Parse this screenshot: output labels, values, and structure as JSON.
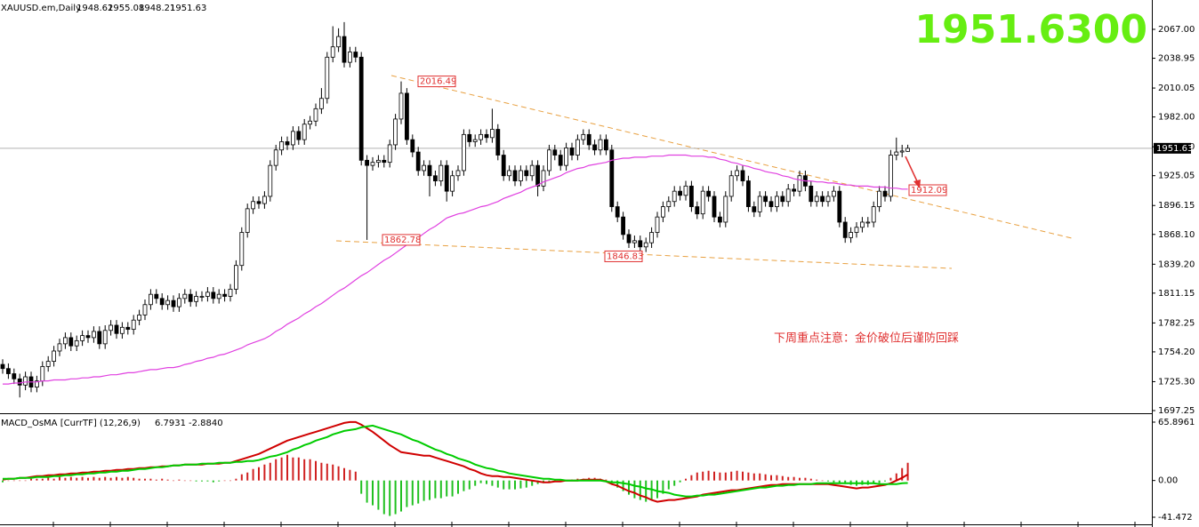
{
  "header": {
    "symbol": "XAUUSD.em,Daily"
  },
  "price_display": "1951.6300",
  "annotations": [
    "2016.49",
    "1862.78",
    "1846.83",
    "1912.09"
  ],
  "note": "下周重点注意：金价破位后谨防回踩",
  "chart_data": [
    {
      "type": "candlestick",
      "up_color": "#ffffff",
      "down_color": "#000000",
      "ma_color": "#e040e0",
      "ylim": [
        1694.66,
        2095.44
      ],
      "yticks": [
        {
          "value": 2067,
          "label": "2067.00"
        },
        {
          "value": 2038.95,
          "label": "2038.95"
        },
        {
          "value": 2010.05,
          "label": "2010.05"
        },
        {
          "value": 1982,
          "label": "1982.00"
        },
        {
          "value": 1953.1,
          "label": "1953.10"
        },
        {
          "value": 1925.05,
          "label": "1925.05"
        },
        {
          "value": 1896.15,
          "label": "1896.15"
        },
        {
          "value": 1868.1,
          "label": "1868.10"
        },
        {
          "value": 1839.2,
          "label": "1839.20"
        },
        {
          "value": 1811.15,
          "label": "1811.15"
        },
        {
          "value": 1782.25,
          "label": "1782.25"
        },
        {
          "value": 1754.2,
          "label": "1754.20"
        },
        {
          "value": 1725.3,
          "label": "1725.30"
        },
        {
          "value": 1697.25,
          "label": "1697.25"
        }
      ],
      "open": [
        1742,
        1738,
        1733,
        1728,
        1722,
        1730,
        1720,
        1726,
        1740,
        1745,
        1755,
        1762,
        1768,
        1760,
        1765,
        1770,
        1768,
        1774,
        1762,
        1775,
        1780,
        1772,
        1778,
        1776,
        1785,
        1790,
        1800,
        1810,
        1806,
        1800,
        1804,
        1798,
        1806,
        1810,
        1803,
        1808,
        1808,
        1812,
        1806,
        1810,
        1808,
        1815,
        1838,
        1870,
        1893,
        1900,
        1898,
        1905,
        1935,
        1950,
        1958,
        1955,
        1968,
        1960,
        1975,
        1978,
        1990,
        2000,
        2040,
        2050,
        2060,
        2035,
        2045,
        2040,
        1940,
        1935,
        1938,
        1940,
        1938,
        1955,
        1980,
        2005,
        1960,
        1948,
        1930,
        1935,
        1925,
        1920,
        1935,
        1910,
        1925,
        1930,
        1965,
        1958,
        1960,
        1965,
        1962,
        1970,
        1945,
        1925,
        1930,
        1920,
        1930,
        1925,
        1935,
        1915,
        1930,
        1950,
        1945,
        1935,
        1952,
        1945,
        1960,
        1965,
        1955,
        1950,
        1960,
        1950,
        1895,
        1885,
        1868,
        1860,
        1862,
        1856,
        1860,
        1870,
        1885,
        1895,
        1900,
        1910,
        1906,
        1915,
        1895,
        1888,
        1910,
        1905,
        1885,
        1880,
        1905,
        1925,
        1930,
        1920,
        1895,
        1890,
        1905,
        1900,
        1895,
        1905,
        1900,
        1912,
        1910,
        1925,
        1915,
        1900,
        1905,
        1900,
        1905,
        1910,
        1880,
        1865,
        1870,
        1875,
        1880,
        1880,
        1895,
        1910,
        1905,
        1945,
        1948,
        1948.62
      ],
      "high": [
        1747,
        1743,
        1738,
        1733,
        1735,
        1735,
        1731,
        1745,
        1750,
        1760,
        1767,
        1773,
        1773,
        1770,
        1775,
        1775,
        1779,
        1779,
        1780,
        1785,
        1785,
        1783,
        1783,
        1790,
        1795,
        1805,
        1815,
        1815,
        1811,
        1809,
        1809,
        1811,
        1815,
        1815,
        1813,
        1813,
        1817,
        1817,
        1815,
        1815,
        1820,
        1843,
        1875,
        1898,
        1905,
        1905,
        1910,
        1940,
        1955,
        1963,
        1963,
        1973,
        1973,
        1980,
        1983,
        1995,
        2010,
        2045,
        2070,
        2068,
        2074,
        2050,
        2050,
        2045,
        1945,
        1943,
        1945,
        1945,
        1960,
        1985,
        2016.49,
        2010,
        1965,
        1953,
        1940,
        1940,
        1930,
        1940,
        1940,
        1930,
        1935,
        1970,
        1970,
        1965,
        1970,
        1970,
        1990,
        1975,
        1950,
        1935,
        1935,
        1935,
        1935,
        1940,
        1940,
        1935,
        1955,
        1955,
        1950,
        1957,
        1957,
        1965,
        1970,
        1970,
        1960,
        1965,
        1965,
        1955,
        1900,
        1890,
        1873,
        1867,
        1867,
        1865,
        1875,
        1890,
        1900,
        1905,
        1915,
        1915,
        1920,
        1920,
        1900,
        1915,
        1915,
        1910,
        1890,
        1910,
        1930,
        1935,
        1935,
        1925,
        1900,
        1910,
        1910,
        1905,
        1910,
        1910,
        1917,
        1917,
        1930,
        1930,
        1920,
        1910,
        1910,
        1910,
        1915,
        1915,
        1885,
        1875,
        1880,
        1885,
        1885,
        1900,
        1915,
        1915,
        1950,
        1962,
        1955,
        1955.08
      ],
      "low": [
        1733,
        1728,
        1723,
        1710,
        1717,
        1715,
        1715,
        1721,
        1735,
        1740,
        1750,
        1757,
        1755,
        1755,
        1760,
        1763,
        1763,
        1757,
        1757,
        1770,
        1767,
        1767,
        1771,
        1771,
        1780,
        1785,
        1795,
        1801,
        1795,
        1795,
        1793,
        1793,
        1801,
        1798,
        1798,
        1803,
        1803,
        1801,
        1801,
        1803,
        1803,
        1810,
        1833,
        1865,
        1888,
        1893,
        1893,
        1900,
        1930,
        1945,
        1950,
        1950,
        1955,
        1955,
        1970,
        1973,
        1985,
        1995,
        2035,
        2045,
        2030,
        2030,
        2035,
        1935,
        1862.78,
        1930,
        1933,
        1933,
        1933,
        1950,
        1975,
        1955,
        1943,
        1925,
        1925,
        1905,
        1915,
        1915,
        1900,
        1905,
        1920,
        1925,
        1953,
        1953,
        1955,
        1957,
        1957,
        1940,
        1920,
        1920,
        1915,
        1915,
        1920,
        1920,
        1905,
        1910,
        1925,
        1940,
        1930,
        1930,
        1940,
        1940,
        1955,
        1950,
        1945,
        1945,
        1945,
        1890,
        1880,
        1863,
        1855,
        1855,
        1846.83,
        1851,
        1855,
        1865,
        1880,
        1890,
        1895,
        1901,
        1901,
        1890,
        1883,
        1883,
        1900,
        1880,
        1875,
        1875,
        1900,
        1920,
        1915,
        1890,
        1885,
        1885,
        1895,
        1890,
        1890,
        1895,
        1895,
        1905,
        1905,
        1910,
        1895,
        1895,
        1895,
        1895,
        1900,
        1875,
        1860,
        1860,
        1865,
        1870,
        1875,
        1875,
        1890,
        1900,
        1900,
        1940,
        1943,
        1948.21
      ],
      "close": [
        1738,
        1733,
        1728,
        1722,
        1730,
        1720,
        1726,
        1740,
        1745,
        1755,
        1762,
        1768,
        1760,
        1765,
        1770,
        1768,
        1774,
        1762,
        1775,
        1780,
        1772,
        1778,
        1776,
        1785,
        1790,
        1800,
        1810,
        1806,
        1800,
        1804,
        1798,
        1806,
        1810,
        1803,
        1808,
        1808,
        1812,
        1806,
        1810,
        1808,
        1815,
        1838,
        1870,
        1893,
        1900,
        1898,
        1905,
        1935,
        1950,
        1958,
        1955,
        1968,
        1960,
        1975,
        1978,
        1990,
        2000,
        2040,
        2050,
        2060,
        2035,
        2045,
        2040,
        1940,
        1935,
        1938,
        1940,
        1938,
        1955,
        1980,
        2005,
        1960,
        1948,
        1930,
        1935,
        1925,
        1920,
        1935,
        1910,
        1925,
        1930,
        1965,
        1958,
        1960,
        1965,
        1962,
        1970,
        1945,
        1925,
        1930,
        1920,
        1930,
        1925,
        1935,
        1915,
        1930,
        1950,
        1945,
        1935,
        1952,
        1945,
        1960,
        1965,
        1955,
        1950,
        1960,
        1950,
        1895,
        1885,
        1868,
        1860,
        1862,
        1856,
        1860,
        1870,
        1885,
        1895,
        1900,
        1910,
        1906,
        1915,
        1895,
        1888,
        1910,
        1905,
        1885,
        1880,
        1905,
        1925,
        1930,
        1920,
        1895,
        1890,
        1905,
        1900,
        1895,
        1905,
        1900,
        1912,
        1910,
        1925,
        1915,
        1900,
        1905,
        1900,
        1905,
        1910,
        1880,
        1865,
        1870,
        1875,
        1880,
        1880,
        1895,
        1910,
        1905,
        1945,
        1948,
        1949,
        1951.63
      ],
      "ma": [
        1723,
        1723,
        1724,
        1724,
        1725,
        1725,
        1725,
        1726,
        1726,
        1727,
        1727,
        1727,
        1728,
        1728,
        1729,
        1729,
        1730,
        1730,
        1731,
        1732,
        1732,
        1733,
        1734,
        1734,
        1735,
        1736,
        1737,
        1737,
        1738,
        1739,
        1739,
        1740,
        1742,
        1743,
        1745,
        1746,
        1748,
        1749,
        1751,
        1752,
        1754,
        1756,
        1758,
        1761,
        1763,
        1765,
        1767,
        1770,
        1774,
        1777,
        1781,
        1784,
        1787,
        1791,
        1794,
        1798,
        1801,
        1805,
        1809,
        1813,
        1816,
        1820,
        1824,
        1828,
        1831,
        1835,
        1839,
        1843,
        1846,
        1850,
        1854,
        1858,
        1861,
        1865,
        1869,
        1873,
        1876,
        1880,
        1884,
        1886,
        1888,
        1889,
        1891,
        1893,
        1895,
        1896,
        1898,
        1900,
        1903,
        1905,
        1907,
        1909,
        1912,
        1914,
        1916,
        1919,
        1921,
        1923,
        1925,
        1928,
        1930,
        1932,
        1933,
        1935,
        1936,
        1937,
        1938,
        1940,
        1941,
        1942,
        1942,
        1943,
        1943,
        1943,
        1944,
        1944,
        1944,
        1945,
        1945,
        1945,
        1945,
        1944,
        1944,
        1944,
        1943,
        1943,
        1941,
        1940,
        1938,
        1937,
        1935,
        1934,
        1932,
        1931,
        1929,
        1928,
        1927,
        1925,
        1924,
        1922,
        1921,
        1920,
        1920,
        1919,
        1919,
        1918,
        1918,
        1917,
        1916,
        1916,
        1915,
        1915,
        1915,
        1914,
        1914,
        1914,
        1913,
        1913,
        1912,
        1912
      ]
    },
    {
      "type": "macd",
      "title": "MACD_OsMA [CurrTF] (12,26,9)",
      "readout": [
        "6.7931",
        "-2.8840"
      ],
      "macd_color": "#d00000",
      "signal_color": "#00cc00",
      "up_color": "#d02020",
      "down_color": "#20c020",
      "ylim": [
        -49.5,
        73.92
      ],
      "yticks": [
        65.8961,
        {
          "value": 0,
          "label": "0.00"
        },
        -41.472
      ],
      "osma": [
        -2,
        0,
        0,
        0,
        0,
        2,
        2,
        2,
        4,
        2,
        4,
        3,
        4,
        3,
        4,
        3,
        4,
        3,
        4,
        3,
        4,
        3,
        4,
        3,
        2,
        2,
        2,
        1,
        2,
        1,
        0,
        1,
        0,
        0,
        -1,
        -1,
        -1,
        -2,
        -1,
        0,
        0,
        2,
        7,
        9,
        13,
        15,
        18,
        20,
        24,
        26,
        29,
        26,
        26,
        24,
        24,
        22,
        20,
        19,
        18,
        16,
        14,
        12,
        10,
        -15,
        -25,
        -28,
        -33,
        -38,
        -40,
        -38,
        -35,
        -30,
        -28,
        -26,
        -23,
        -22,
        -20,
        -20,
        -18,
        -18,
        -15,
        -12,
        -10,
        -6,
        -3,
        -4,
        -6,
        -8,
        -10,
        -10,
        -10,
        -9,
        -8,
        -6,
        -4,
        -3,
        -2,
        -1,
        0,
        0,
        1,
        2,
        2,
        3,
        3,
        2,
        1,
        -3,
        -8,
        -12,
        -16,
        -20,
        -22,
        -24,
        -22,
        -20,
        -15,
        -10,
        -6,
        -2,
        2,
        6,
        9,
        10,
        11,
        10,
        9,
        9,
        10,
        11,
        10,
        9,
        8,
        8,
        7,
        6,
        6,
        5,
        4,
        4,
        3,
        3,
        2,
        1,
        0,
        -1,
        -2,
        -3,
        -4,
        -5,
        -6,
        -5,
        -5,
        -4,
        -3,
        -1,
        3,
        8,
        14,
        20
      ],
      "macd": [
        1,
        2,
        2,
        3,
        3,
        4,
        5,
        5,
        6,
        6,
        7,
        7,
        8,
        8,
        9,
        9,
        10,
        10,
        11,
        11,
        12,
        12,
        13,
        13,
        14,
        14,
        15,
        15,
        16,
        16,
        17,
        17,
        18,
        18,
        18,
        18,
        19,
        19,
        19,
        20,
        20,
        22,
        24,
        26,
        28,
        30,
        33,
        36,
        39,
        42,
        45,
        47,
        49,
        51,
        53,
        55,
        57,
        59,
        61,
        63,
        65,
        66,
        66,
        63,
        59,
        55,
        50,
        45,
        40,
        36,
        32,
        31,
        30,
        29,
        28,
        28,
        26,
        24,
        22,
        20,
        18,
        16,
        13,
        11,
        8,
        6,
        5,
        5,
        4,
        4,
        3,
        2,
        1,
        0,
        -1,
        -2,
        -2,
        -1,
        -1,
        0,
        0,
        0,
        1,
        1,
        1,
        1,
        -1,
        -4,
        -6,
        -9,
        -12,
        -14,
        -17,
        -19,
        -22,
        -24,
        -23,
        -22,
        -22,
        -21,
        -20,
        -19,
        -18,
        -16,
        -15,
        -14,
        -13,
        -12,
        -11,
        -11,
        -10,
        -9,
        -8,
        -7,
        -6,
        -5,
        -5,
        -4,
        -4,
        -4,
        -4,
        -4,
        -4,
        -4,
        -4,
        -4,
        -5,
        -6,
        -7,
        -8,
        -9,
        -8,
        -8,
        -7,
        -6,
        -5,
        -3,
        0,
        3,
        6.7931
      ],
      "signal": [
        2,
        2,
        2,
        3,
        3,
        3,
        4,
        4,
        4,
        5,
        5,
        6,
        6,
        7,
        7,
        8,
        8,
        9,
        9,
        10,
        10,
        11,
        11,
        12,
        13,
        13,
        14,
        15,
        15,
        16,
        17,
        17,
        18,
        18,
        18,
        19,
        19,
        19,
        20,
        20,
        20,
        21,
        21,
        22,
        22,
        23,
        25,
        27,
        28,
        30,
        32,
        35,
        37,
        40,
        42,
        45,
        47,
        49,
        52,
        54,
        56,
        57,
        58,
        60,
        61,
        62,
        60,
        58,
        56,
        54,
        52,
        49,
        46,
        44,
        41,
        38,
        35,
        33,
        30,
        28,
        25,
        23,
        21,
        18,
        16,
        14,
        13,
        11,
        10,
        8,
        7,
        6,
        5,
        4,
        3,
        2,
        2,
        1,
        1,
        0,
        0,
        0,
        0,
        0,
        0,
        0,
        -1,
        -2,
        -2,
        -3,
        -4,
        -6,
        -7,
        -9,
        -10,
        -12,
        -13,
        -14,
        -16,
        -17,
        -18,
        -18,
        -17,
        -17,
        -16,
        -16,
        -15,
        -14,
        -13,
        -12,
        -11,
        -10,
        -9,
        -8,
        -8,
        -7,
        -6,
        -6,
        -5,
        -5,
        -4,
        -4,
        -4,
        -3,
        -3,
        -3,
        -3,
        -3,
        -3,
        -3,
        -3,
        -3,
        -3,
        -3,
        -4,
        -4,
        -4,
        -4,
        -3,
        -2.884
      ]
    }
  ]
}
